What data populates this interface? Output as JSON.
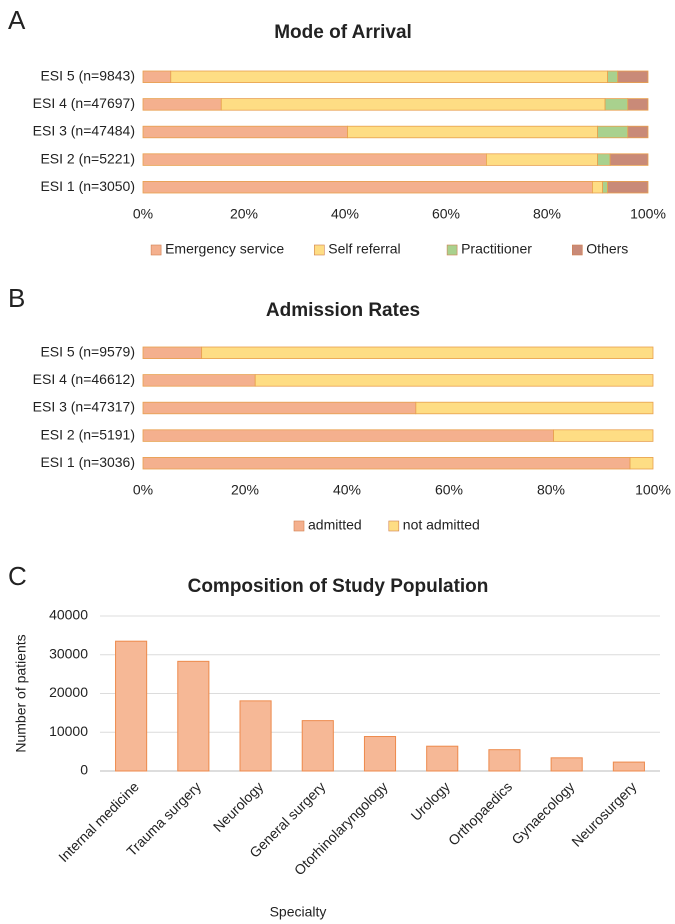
{
  "chart_data": [
    {
      "type": "stacked_bar",
      "orientation": "horizontal",
      "panel_label": "A",
      "title": "Mode of Arrival",
      "categories": [
        "ESI 5 (n=9843)",
        "ESI 4 (n=47697)",
        "ESI 3 (n=47484)",
        "ESI 2 (n=5221)",
        "ESI 1 (n=3050)"
      ],
      "series": [
        {
          "name": "Emergency service",
          "color": "#f4b08e",
          "values": [
            5.5,
            15.5,
            40.5,
            68,
            89
          ]
        },
        {
          "name": "Self referral",
          "color": "#fedd84",
          "values": [
            86.5,
            76,
            49.5,
            22,
            2
          ]
        },
        {
          "name": "Practitioner",
          "color": "#a9d18e",
          "values": [
            2,
            4.5,
            6,
            2.5,
            1
          ]
        },
        {
          "name": "Others",
          "color": "#c98a78",
          "values": [
            6,
            4,
            4,
            7.5,
            8
          ]
        }
      ],
      "xlim": [
        0,
        100
      ],
      "xticks": [
        {
          "value": 0,
          "label": "0%"
        },
        {
          "value": 20,
          "label": "20%"
        },
        {
          "value": 40,
          "label": "40%"
        },
        {
          "value": 60,
          "label": "60%"
        },
        {
          "value": 80,
          "label": "80%"
        },
        {
          "value": 100,
          "label": "100%"
        }
      ],
      "legend": "bottom"
    },
    {
      "type": "stacked_bar",
      "orientation": "horizontal",
      "panel_label": "B",
      "title": "Admission Rates",
      "categories": [
        "ESI 5 (n=9579)",
        "ESI 4 (n=46612)",
        "ESI 3 (n=47317)",
        "ESI 2 (n=5191)",
        "ESI 1 (n=3036)"
      ],
      "series": [
        {
          "name": "admitted",
          "color": "#f4b08e",
          "values": [
            11.5,
            22,
            53.5,
            80.5,
            95.5
          ]
        },
        {
          "name": "not admitted",
          "color": "#fedd84",
          "values": [
            88.5,
            78,
            46.5,
            19.5,
            4.5
          ]
        }
      ],
      "xlim": [
        0,
        100
      ],
      "xticks": [
        {
          "value": 0,
          "label": "0%"
        },
        {
          "value": 20,
          "label": "20%"
        },
        {
          "value": 40,
          "label": "40%"
        },
        {
          "value": 60,
          "label": "60%"
        },
        {
          "value": 80,
          "label": "80%"
        },
        {
          "value": 100,
          "label": "100%"
        }
      ],
      "legend": "bottom"
    },
    {
      "type": "bar",
      "panel_label": "C",
      "title": "Composition of Study Population",
      "x_label": "Specialty",
      "y_label": "Number of patients",
      "categories": [
        "Internal medicine",
        "Trauma surgery",
        "Neurology",
        "General surgery",
        "Otorhinolaryngology",
        "Urology",
        "Orthopaedics",
        "Gynaecology",
        "Neurosurgery"
      ],
      "values": [
        33500,
        28300,
        18100,
        13000,
        8900,
        6400,
        5500,
        3400,
        2300
      ],
      "color": "#f6b896",
      "ylim": [
        0,
        40000
      ],
      "yticks": [
        0,
        10000,
        20000,
        30000,
        40000
      ],
      "grid": true
    }
  ]
}
